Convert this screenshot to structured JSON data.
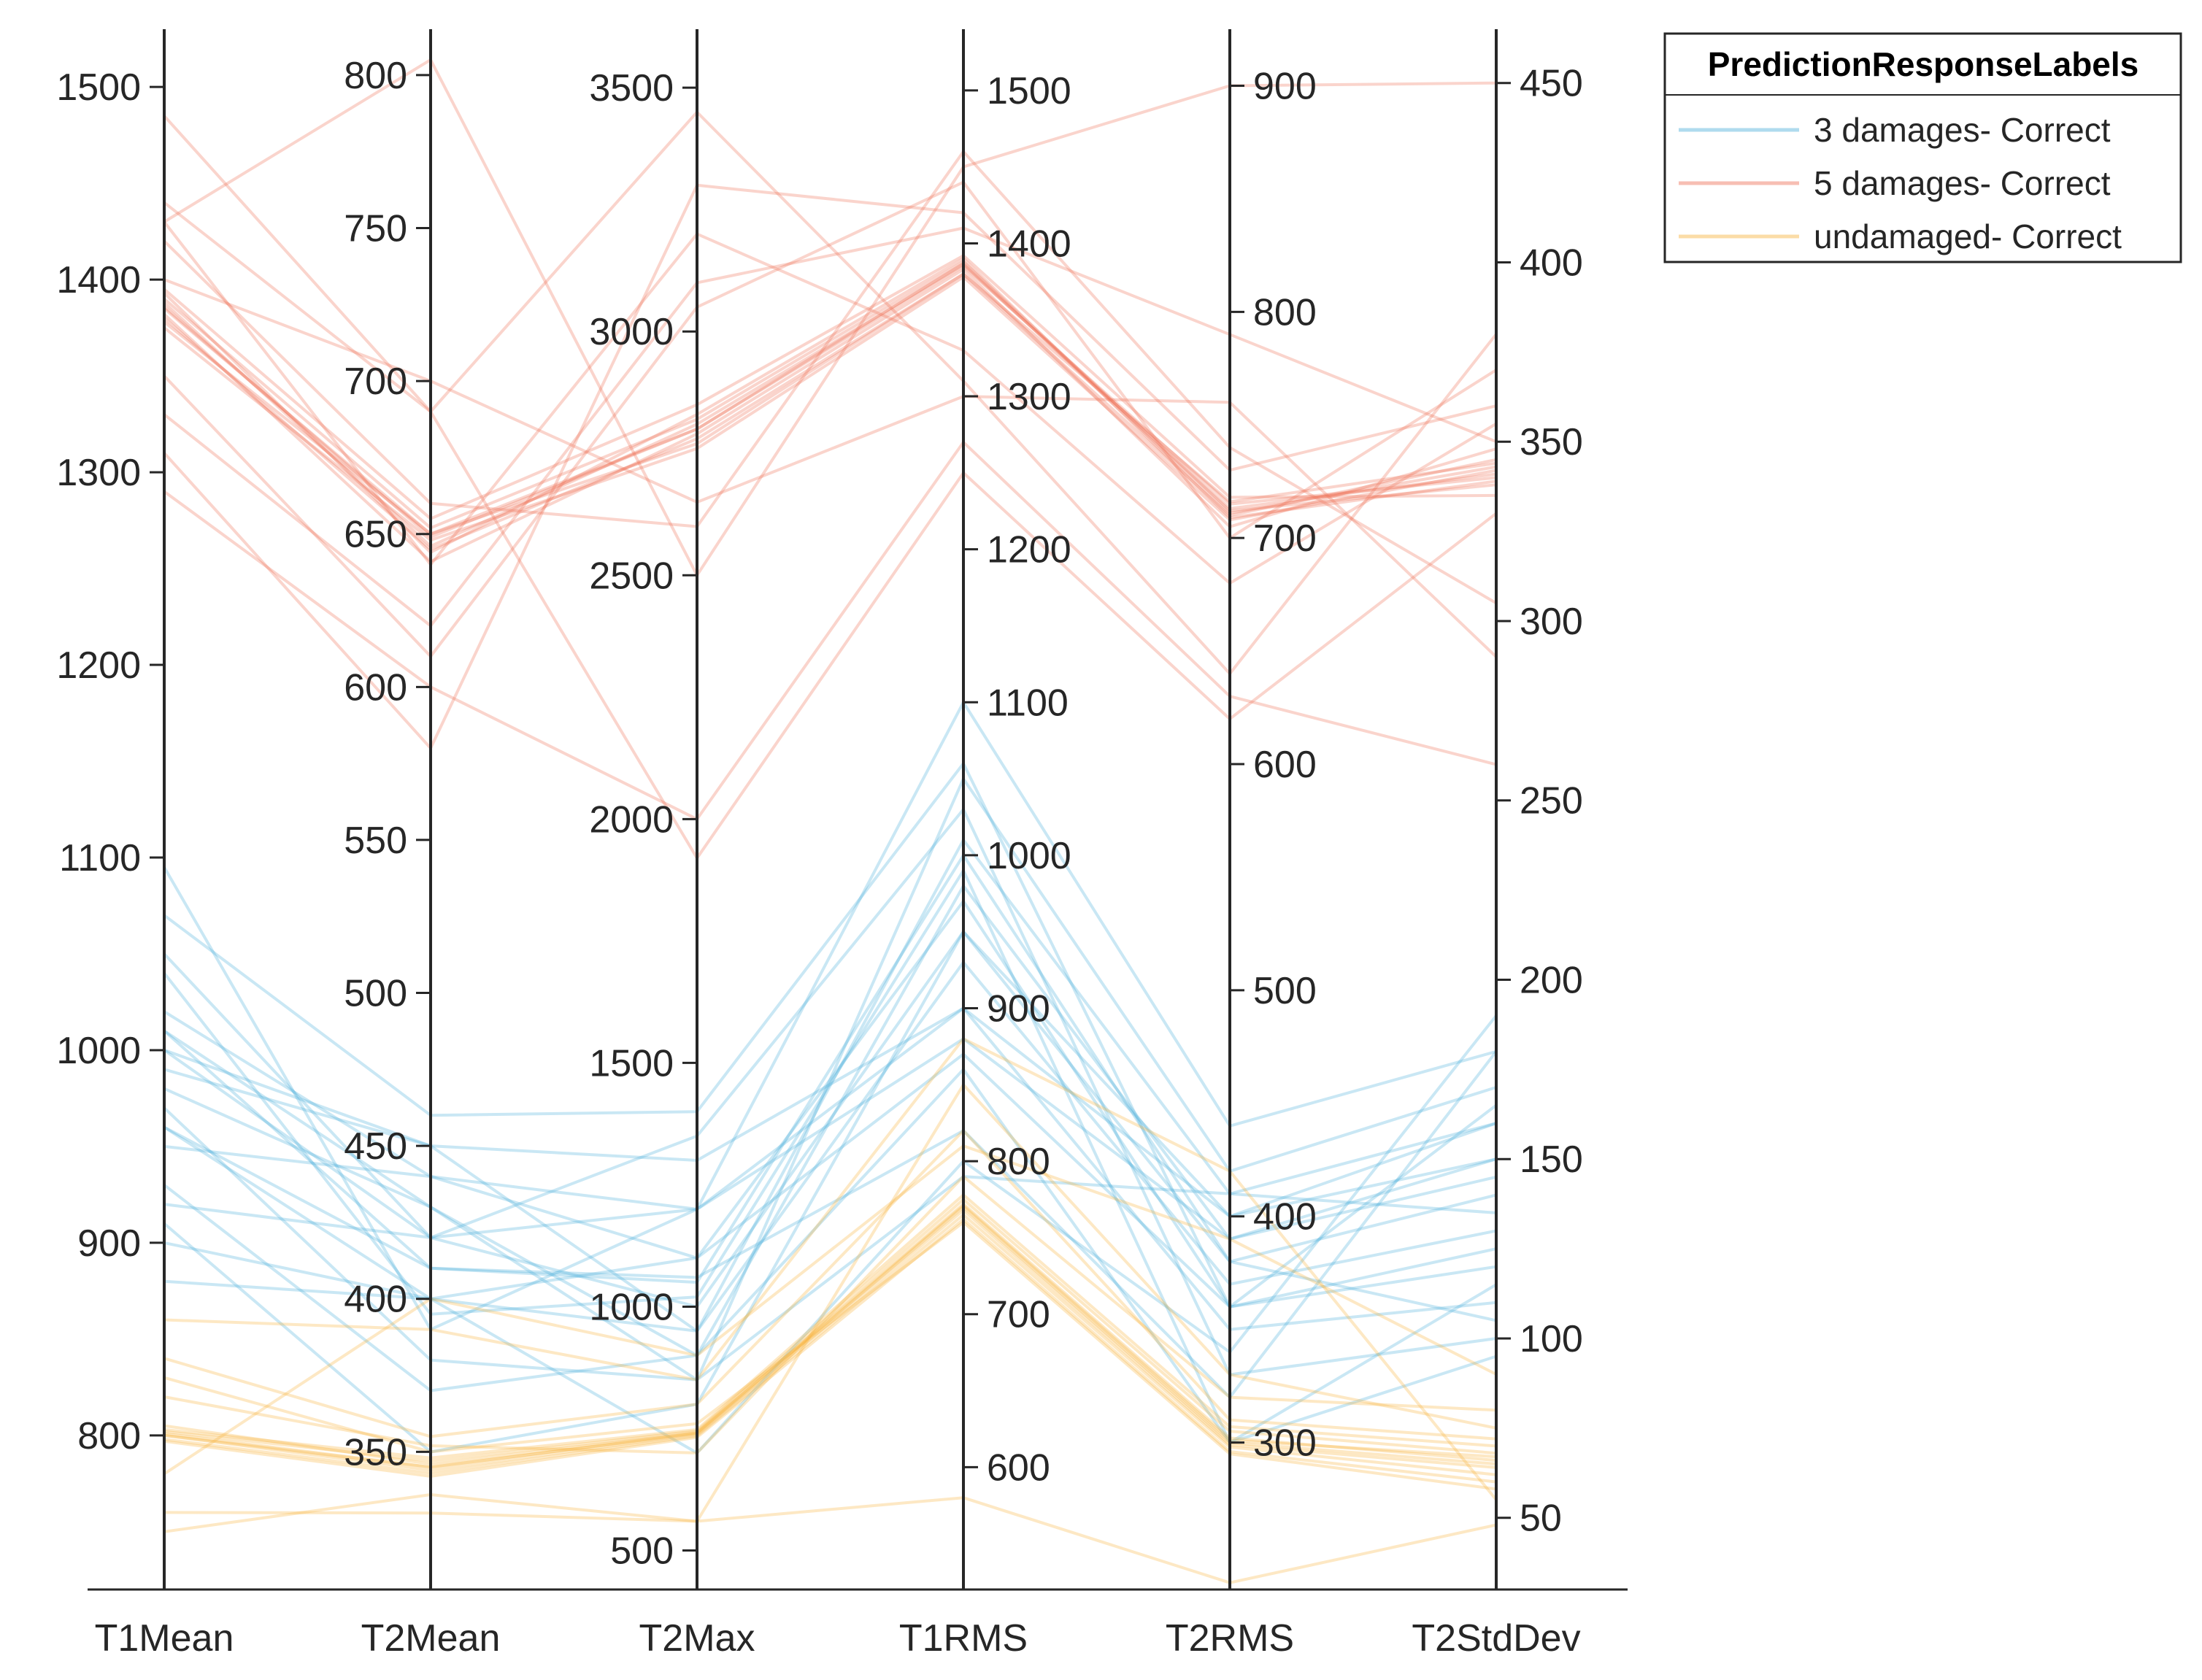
{
  "chart_data": {
    "type": "parallel-coordinates",
    "axes": [
      {
        "name": "T1Mean",
        "ylim": [
          720,
          1530
        ],
        "ticks": [
          800,
          900,
          1000,
          1100,
          1200,
          1300,
          1400,
          1500
        ]
      },
      {
        "name": "T2Mean",
        "ylim": [
          305,
          815
        ],
        "ticks": [
          350,
          400,
          450,
          500,
          550,
          600,
          650,
          700,
          750,
          800
        ]
      },
      {
        "name": "T2Max",
        "ylim": [
          420,
          3620
        ],
        "ticks": [
          500,
          1000,
          1500,
          2000,
          2500,
          3000,
          3500
        ]
      },
      {
        "name": "T1RMS",
        "ylim": [
          520,
          1540
        ],
        "ticks": [
          600,
          700,
          800,
          900,
          1000,
          1100,
          1200,
          1300,
          1400,
          1500
        ]
      },
      {
        "name": "T2RMS",
        "ylim": [
          235,
          925
        ],
        "ticks": [
          300,
          400,
          500,
          600,
          700,
          800,
          900
        ]
      },
      {
        "name": "T2StdDev",
        "ylim": [
          30,
          465
        ],
        "ticks": [
          50,
          100,
          150,
          200,
          250,
          300,
          350,
          400,
          450
        ]
      }
    ],
    "legend": {
      "title": "PredictionResponseLabels",
      "placement": "top-right",
      "entries": [
        {
          "label": "3 damages- Correct",
          "color": "#4DAFD9"
        },
        {
          "label": "5 damages- Correct",
          "color": "#EE6F57"
        },
        {
          "label": "undamaged- Correct",
          "color": "#F7B23B"
        }
      ]
    },
    "series": [
      {
        "name": "5 damages- Correct",
        "color": "#EE6F57",
        "lines": [
          [
            1385,
            650,
            2800,
            1385,
            715,
            340
          ],
          [
            1380,
            645,
            2780,
            1380,
            710,
            345
          ],
          [
            1390,
            652,
            2820,
            1388,
            712,
            338
          ],
          [
            1375,
            648,
            2760,
            1378,
            708,
            342
          ],
          [
            1395,
            655,
            2850,
            1392,
            718,
            335
          ],
          [
            1382,
            641,
            2790,
            1383,
            705,
            348
          ],
          [
            1388,
            646,
            2810,
            1386,
            713,
            341
          ],
          [
            1378,
            650,
            2770,
            1380,
            716,
            344
          ],
          [
            1393,
            644,
            2830,
            1390,
            709,
            339
          ],
          [
            1386,
            649,
            2800,
            1387,
            711,
            343
          ],
          [
            1430,
            805,
            2500,
            1450,
            900,
            450
          ],
          [
            1440,
            690,
            3450,
            1310,
            640,
            380
          ],
          [
            1290,
            600,
            2000,
            1270,
            630,
            260
          ],
          [
            1330,
            620,
            3100,
            1410,
            790,
            350
          ],
          [
            1420,
            660,
            2600,
            1460,
            740,
            305
          ],
          [
            1485,
            690,
            1920,
            1250,
            620,
            330
          ],
          [
            1310,
            580,
            3300,
            1420,
            730,
            360
          ],
          [
            1400,
            700,
            2650,
            1300,
            760,
            290
          ],
          [
            1350,
            610,
            3050,
            1440,
            700,
            370
          ],
          [
            1430,
            640,
            3200,
            1330,
            680,
            355
          ]
        ]
      },
      {
        "name": "3 damages- Correct",
        "color": "#4DAFD9",
        "lines": [
          [
            1000,
            420,
            1000,
            950,
            400,
            160
          ],
          [
            980,
            430,
            900,
            980,
            390,
            150
          ],
          [
            1010,
            410,
            1050,
            1000,
            380,
            140
          ],
          [
            960,
            400,
            950,
            930,
            370,
            130
          ],
          [
            1020,
            440,
            1100,
            970,
            360,
            120
          ],
          [
            990,
            450,
            1300,
            900,
            350,
            110
          ],
          [
            970,
            380,
            850,
            1050,
            420,
            170
          ],
          [
            1050,
            420,
            1350,
            1030,
            330,
            100
          ],
          [
            1095,
            390,
            1200,
            1100,
            440,
            180
          ],
          [
            930,
            370,
            900,
            860,
            300,
            95
          ],
          [
            910,
            350,
            800,
            950,
            380,
            105
          ],
          [
            1070,
            460,
            1400,
            1060,
            360,
            125
          ],
          [
            950,
            440,
            1200,
            900,
            400,
            150
          ],
          [
            900,
            400,
            700,
            800,
            340,
            190
          ],
          [
            880,
            400,
            1100,
            870,
            360,
            165
          ],
          [
            1000,
            450,
            950,
            1010,
            410,
            135
          ],
          [
            1040,
            395,
            1020,
            990,
            300,
            115
          ],
          [
            960,
            410,
            1060,
            820,
            320,
            180
          ],
          [
            1010,
            430,
            850,
            790,
            410,
            160
          ],
          [
            920,
            420,
            1200,
            880,
            390,
            145
          ]
        ]
      },
      {
        "name": "undamaged- Correct",
        "color": "#F7B23B",
        "lines": [
          [
            800,
            345,
            740,
            770,
            300,
            65
          ],
          [
            802,
            347,
            745,
            775,
            305,
            68
          ],
          [
            798,
            343,
            735,
            765,
            298,
            62
          ],
          [
            805,
            346,
            742,
            772,
            302,
            66
          ],
          [
            800,
            344,
            738,
            768,
            299,
            64
          ],
          [
            803,
            348,
            748,
            778,
            307,
            70
          ],
          [
            797,
            342,
            732,
            762,
            296,
            60
          ],
          [
            801,
            345,
            741,
            771,
            301,
            67
          ],
          [
            760,
            330,
            560,
            850,
            330,
            75
          ],
          [
            840,
            355,
            800,
            820,
            310,
            72
          ],
          [
            780,
            400,
            900,
            810,
            390,
            90
          ],
          [
            860,
            390,
            850,
            880,
            420,
            55
          ],
          [
            820,
            352,
            700,
            790,
            320,
            80
          ],
          [
            750,
            336,
            560,
            580,
            238,
            48
          ],
          [
            830,
            350,
            760,
            760,
            295,
            58
          ]
        ]
      }
    ]
  }
}
